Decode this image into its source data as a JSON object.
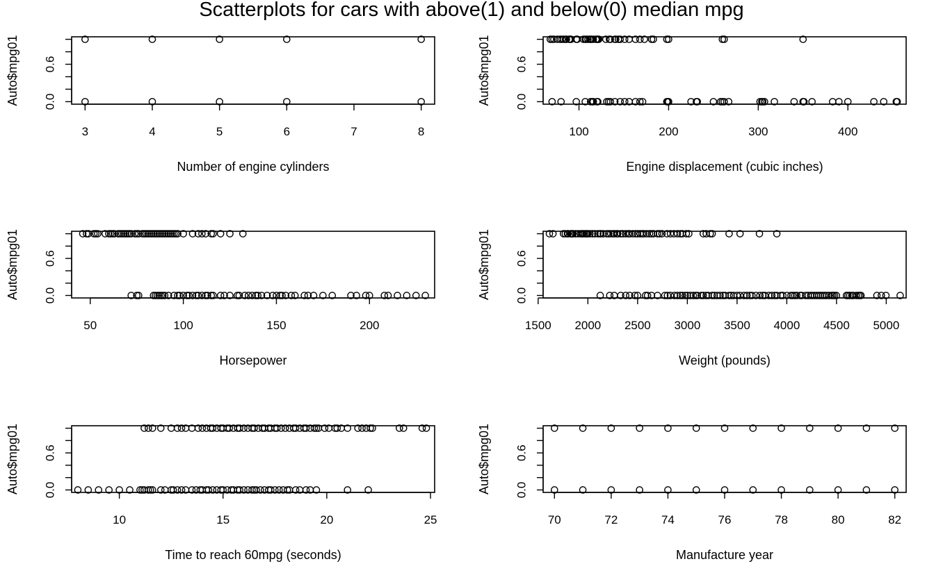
{
  "page": {
    "title": "Scatterplots for cars with above(1) and below(0) median mpg"
  },
  "chart_data": [
    {
      "type": "scatter",
      "xlabel": "Number of engine cylinders",
      "ylabel": "Auto$mpg01",
      "xlim": [
        2.8,
        8.2
      ],
      "ylim": [
        -0.04,
        1.04
      ],
      "xticks": [
        3,
        4,
        5,
        6,
        7,
        8
      ],
      "yticks": [
        0.0,
        0.2,
        0.4,
        0.6,
        0.8,
        1.0
      ],
      "yticklabels": [
        "0.0",
        "",
        "",
        "0.6",
        "",
        ""
      ],
      "series_above": [
        3,
        4,
        5,
        6,
        8
      ],
      "series_below": [
        3,
        4,
        5,
        6,
        8
      ]
    },
    {
      "type": "scatter",
      "xlabel": "Engine displacement (cubic inches)",
      "ylabel": "Auto$mpg01",
      "xlim": [
        60,
        465
      ],
      "ylim": [
        -0.04,
        1.04
      ],
      "xticks": [
        100,
        200,
        300,
        400
      ],
      "yticks": [
        0.0,
        0.2,
        0.4,
        0.6,
        0.8,
        1.0
      ],
      "yticklabels": [
        "0.0",
        "",
        "",
        "0.6",
        "",
        ""
      ],
      "series_above": [
        68,
        70,
        72,
        76,
        79,
        81,
        83,
        85,
        86,
        89,
        90,
        91,
        97,
        98,
        105,
        107,
        108,
        110,
        112,
        113,
        114,
        116,
        119,
        120,
        121,
        122,
        130,
        134,
        135,
        140,
        141,
        144,
        146,
        151,
        156,
        163,
        168,
        173,
        181,
        183,
        198,
        200,
        260,
        262,
        350
      ],
      "series_below": [
        70,
        80,
        97,
        107,
        113,
        115,
        116,
        120,
        121,
        131,
        133,
        135,
        140,
        146,
        151,
        156,
        163,
        168,
        171,
        198,
        199,
        200,
        225,
        231,
        232,
        250,
        258,
        260,
        262,
        267,
        302,
        304,
        305,
        307,
        318,
        340,
        350,
        351,
        360,
        383,
        390,
        400,
        429,
        440,
        454,
        455
      ]
    },
    {
      "type": "scatter",
      "xlabel": "Horsepower",
      "ylabel": "Auto$mpg01",
      "xlim": [
        40,
        235
      ],
      "ylim": [
        -0.04,
        1.04
      ],
      "xticks": [
        50,
        100,
        150,
        200
      ],
      "yticks": [
        0.0,
        0.2,
        0.4,
        0.6,
        0.8,
        1.0
      ],
      "yticklabels": [
        "0.0",
        "",
        "",
        "0.6",
        "",
        ""
      ],
      "series_above": [
        46,
        48,
        49,
        52,
        53,
        54,
        58,
        60,
        61,
        62,
        63,
        65,
        66,
        67,
        68,
        69,
        70,
        71,
        72,
        74,
        75,
        76,
        78,
        79,
        80,
        81,
        82,
        83,
        84,
        85,
        86,
        87,
        88,
        89,
        90,
        91,
        92,
        93,
        94,
        95,
        96,
        97,
        100,
        105,
        108,
        110,
        112,
        115,
        116,
        120,
        125,
        132
      ],
      "series_below": [
        72,
        75,
        76,
        84,
        85,
        86,
        87,
        88,
        89,
        90,
        92,
        95,
        97,
        98,
        100,
        102,
        103,
        105,
        107,
        108,
        110,
        112,
        113,
        115,
        116,
        120,
        122,
        125,
        129,
        130,
        133,
        135,
        137,
        139,
        140,
        142,
        145,
        148,
        150,
        152,
        153,
        155,
        158,
        160,
        165,
        167,
        170,
        175,
        180,
        190,
        193,
        198,
        200,
        208,
        210,
        215,
        220,
        225,
        230
      ]
    },
    {
      "type": "scatter",
      "xlabel": "Weight (pounds)",
      "ylabel": "Auto$mpg01",
      "xlim": [
        1550,
        5200
      ],
      "ylim": [
        -0.04,
        1.04
      ],
      "xticks": [
        1500,
        2000,
        2500,
        3000,
        3500,
        4000,
        4500,
        5000
      ],
      "yticks": [
        0.0,
        0.2,
        0.4,
        0.6,
        0.8,
        1.0
      ],
      "yticklabels": [
        "0.0",
        "",
        "",
        "0.6",
        "",
        ""
      ],
      "series_above": [
        1613,
        1649,
        1755,
        1773,
        1795,
        1800,
        1825,
        1835,
        1845,
        1850,
        1875,
        1900,
        1925,
        1940,
        1950,
        1965,
        1980,
        1990,
        2000,
        2020,
        2045,
        2070,
        2100,
        2120,
        2130,
        2155,
        2190,
        2210,
        2230,
        2255,
        2265,
        2290,
        2300,
        2330,
        2350,
        2380,
        2405,
        2420,
        2450,
        2480,
        2500,
        2525,
        2545,
        2560,
        2590,
        2620,
        2640,
        2660,
        2700,
        2720,
        2745,
        2795,
        2830,
        2865,
        2900,
        2930,
        2950,
        2990,
        3015,
        3160,
        3190,
        3230,
        3250,
        3420,
        3530,
        3725,
        3900
      ],
      "series_below": [
        2124,
        2220,
        2265,
        2330,
        2380,
        2420,
        2472,
        2500,
        2580,
        2600,
        2640,
        2700,
        2774,
        2800,
        2830,
        2870,
        2900,
        2930,
        2950,
        2979,
        3000,
        3030,
        3060,
        3085,
        3100,
        3140,
        3160,
        3190,
        3210,
        3250,
        3270,
        3300,
        3330,
        3360,
        3380,
        3420,
        3440,
        3465,
        3500,
        3530,
        3570,
        3600,
        3630,
        3650,
        3690,
        3730,
        3760,
        3780,
        3820,
        3850,
        3880,
        3900,
        3940,
        3960,
        4000,
        4042,
        4060,
        4080,
        4100,
        4135,
        4150,
        4190,
        4215,
        4240,
        4257,
        4278,
        4300,
        4320,
        4340,
        4360,
        4380,
        4400,
        4425,
        4450,
        4464,
        4480,
        4499,
        4600,
        4615,
        4633,
        4654,
        4668,
        4700,
        4720,
        4735,
        4746,
        4906,
        4951,
        4997,
        5140
      ]
    },
    {
      "type": "scatter",
      "xlabel": "Time to reach 60mpg (seconds)",
      "ylabel": "Auto$mpg01",
      "xlim": [
        7.7,
        25.2
      ],
      "ylim": [
        -0.04,
        1.04
      ],
      "xticks": [
        10,
        15,
        20,
        25
      ],
      "yticks": [
        0.0,
        0.2,
        0.4,
        0.6,
        0.8,
        1.0
      ],
      "yticklabels": [
        "0.0",
        "",
        "",
        "0.6",
        "",
        ""
      ],
      "series_above": [
        11.2,
        11.4,
        11.6,
        12.0,
        12.5,
        12.8,
        13.0,
        13.2,
        13.5,
        13.8,
        14.0,
        14.2,
        14.4,
        14.5,
        14.7,
        14.9,
        15.0,
        15.2,
        15.3,
        15.5,
        15.7,
        15.8,
        16.0,
        16.2,
        16.4,
        16.5,
        16.7,
        16.9,
        17.0,
        17.2,
        17.3,
        17.5,
        17.6,
        17.8,
        18.0,
        18.2,
        18.4,
        18.5,
        18.7,
        18.9,
        19.0,
        19.2,
        19.4,
        19.5,
        19.6,
        19.9,
        20.1,
        20.4,
        20.5,
        20.7,
        21.0,
        21.5,
        21.7,
        21.9,
        22.1,
        22.2,
        23.5,
        23.7,
        24.6,
        24.8
      ],
      "series_below": [
        8.0,
        8.5,
        9.0,
        9.5,
        10.0,
        10.5,
        11.0,
        11.1,
        11.2,
        11.4,
        11.5,
        11.6,
        12.0,
        12.2,
        12.5,
        12.6,
        12.8,
        13.0,
        13.2,
        13.5,
        13.7,
        13.9,
        14.0,
        14.2,
        14.3,
        14.5,
        14.7,
        14.9,
        15.0,
        15.2,
        15.4,
        15.5,
        15.7,
        15.8,
        16.0,
        16.2,
        16.4,
        16.5,
        16.6,
        16.8,
        17.0,
        17.2,
        17.3,
        17.5,
        17.7,
        17.9,
        18.1,
        18.2,
        18.5,
        18.7,
        19.0,
        19.2,
        19.5,
        21.0,
        22.0
      ]
    },
    {
      "type": "scatter",
      "xlabel": "Manufacture year",
      "ylabel": "Auto$mpg01",
      "xlim": [
        69.6,
        82.4
      ],
      "ylim": [
        -0.04,
        1.04
      ],
      "xticks": [
        70,
        72,
        74,
        76,
        78,
        80,
        82
      ],
      "yticks": [
        0.0,
        0.2,
        0.4,
        0.6,
        0.8,
        1.0
      ],
      "yticklabels": [
        "0.0",
        "",
        "",
        "0.6",
        "",
        ""
      ],
      "series_above": [
        70,
        71,
        72,
        73,
        74,
        75,
        76,
        77,
        78,
        79,
        80,
        81,
        82
      ],
      "series_below": [
        70,
        71,
        72,
        73,
        74,
        75,
        76,
        77,
        78,
        79,
        80,
        81,
        82
      ]
    }
  ]
}
